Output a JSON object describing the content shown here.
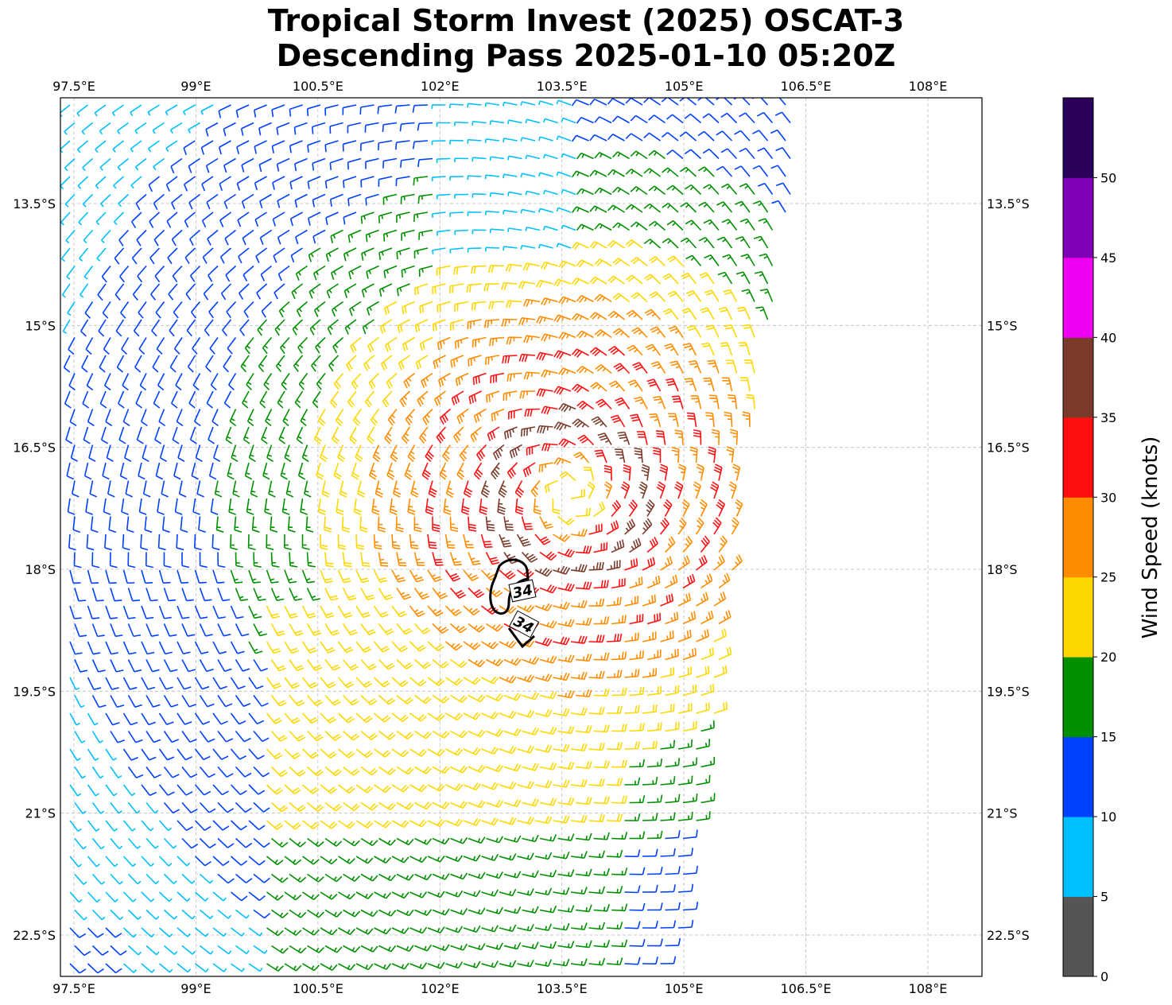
{
  "title_line1": "Tropical Storm Invest (2025) OSCAT-3",
  "title_line2": "Descending Pass 2025-01-10 05:20Z",
  "lon_ticks": [
    "97.5°E",
    "99°E",
    "100.5°E",
    "102°E",
    "103.5°E",
    "105°E",
    "106.5°E",
    "108°E"
  ],
  "lat_ticks": [
    "13.5°S",
    "15°S",
    "16.5°S",
    "18°S",
    "19.5°S",
    "21°S",
    "22.5°S"
  ],
  "colorbar": {
    "label": "Wind Speed (knots)",
    "ticks": [
      "0",
      "5",
      "10",
      "15",
      "20",
      "25",
      "30",
      "35",
      "40",
      "45",
      "50"
    ],
    "colors": [
      "#555555",
      "#00bfff",
      "#0040ff",
      "#009000",
      "#ffd700",
      "#ff8c00",
      "#ff1010",
      "#7b3b2b",
      "#f000f0",
      "#8000b8",
      "#2a005a"
    ]
  },
  "contour_labels": [
    "34",
    "34"
  ],
  "map": {
    "lon_range": [
      97.3,
      108.7
    ],
    "lat_range": [
      -12.2,
      -23.0
    ],
    "storm_center": {
      "lon": 103.6,
      "lat": -17.1
    },
    "grid": true
  }
}
